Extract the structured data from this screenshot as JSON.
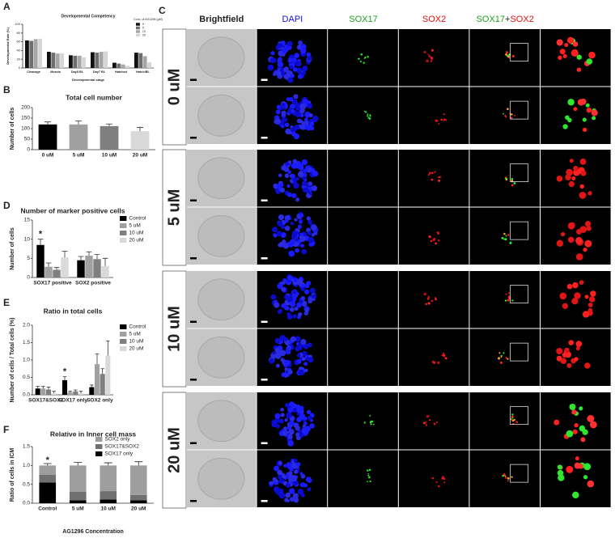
{
  "panel_labels": [
    "A",
    "B",
    "C",
    "D",
    "E",
    "F"
  ],
  "chart_data": [
    {
      "type": "bar",
      "title": "Developmental Competency",
      "x_label": "Developmental stage",
      "y_label": "Developmental Rate (%)",
      "categories": [
        "Cleavage",
        "Morula",
        "Day5 BL",
        "Day7 BL",
        "Hatched",
        "Hatch/BL"
      ],
      "legend_title": "Conc. of AG1296 (μM)",
      "series": [
        {
          "name": "0",
          "color": "#111111",
          "values": [
            63,
            37,
            29,
            36,
            12,
            35
          ]
        },
        {
          "name": "5",
          "color": "#6e6e6e",
          "values": [
            62,
            35,
            28,
            35,
            10,
            34
          ]
        },
        {
          "name": "10",
          "color": "#a6a6a6",
          "values": [
            66,
            33,
            28,
            37,
            8,
            27
          ]
        },
        {
          "name": "20",
          "color": "#d6d6d6",
          "values": [
            67,
            34,
            24,
            38,
            5,
            13
          ]
        }
      ],
      "ylim": [
        0,
        100
      ],
      "yticks": [
        0,
        20,
        40,
        60,
        80,
        100
      ]
    },
    {
      "type": "bar",
      "title": "Total cell number",
      "y_label": "Number of cells",
      "categories": [
        "0 uM",
        "5 uM",
        "10 uM",
        "20 uM"
      ],
      "values": [
        120,
        120,
        112,
        88
      ],
      "errors": [
        12,
        17,
        10,
        18
      ],
      "colors": [
        "#000000",
        "#a0a0a0",
        "#7f7f7f",
        "#d9d9d9"
      ],
      "ylim": [
        0,
        200
      ],
      "yticks": [
        0,
        50,
        100,
        150,
        200
      ]
    },
    {
      "type": "bar",
      "title": "Number of marker positive cells",
      "y_label": "Number of cells",
      "categories": [
        "SOX17 positive",
        "SOX2 positive"
      ],
      "annotation": "*",
      "series": [
        {
          "name": "Control",
          "color": "#000000",
          "values": [
            8.5,
            4.5
          ],
          "errors": [
            1.5,
            1
          ]
        },
        {
          "name": "5 uM",
          "color": "#a0a0a0",
          "values": [
            2.8,
            5.7
          ],
          "errors": [
            1,
            1
          ]
        },
        {
          "name": "10 uM",
          "color": "#7f7f7f",
          "values": [
            2,
            4.8
          ],
          "errors": [
            0.6,
            1.2
          ]
        },
        {
          "name": "20 uM",
          "color": "#d9d9d9",
          "values": [
            5.3,
            3
          ],
          "errors": [
            1.6,
            2
          ]
        }
      ],
      "ylim": [
        0,
        15
      ],
      "yticks": [
        0,
        5,
        10,
        15
      ]
    },
    {
      "type": "bar",
      "title": "Ratio in total cells",
      "y_label": "Number of cells / Total cells (%)",
      "categories": [
        "SOX17&SOX2",
        "SOX17 only",
        "SOX2 only"
      ],
      "annotation": "*",
      "series": [
        {
          "name": "Control",
          "color": "#000000",
          "values": [
            0.18,
            0.42,
            0.22
          ],
          "errors": [
            0.06,
            0.1,
            0.06
          ]
        },
        {
          "name": "5 uM",
          "color": "#a0a0a0",
          "values": [
            0.18,
            0.07,
            0.88
          ],
          "errors": [
            0.06,
            0.03,
            0.3
          ]
        },
        {
          "name": "10 uM",
          "color": "#7f7f7f",
          "values": [
            0.15,
            0.1,
            0.6
          ],
          "errors": [
            0.07,
            0.04,
            0.15
          ]
        },
        {
          "name": "20 uM",
          "color": "#d9d9d9",
          "values": [
            0.05,
            0.05,
            1.13
          ],
          "errors": [
            0.05,
            0.05,
            0.42
          ]
        }
      ],
      "ylim": [
        0,
        2
      ],
      "yticks": [
        {
          "value": 0,
          "label": "0.0"
        },
        {
          "value": 0.5,
          "label": "0.5"
        },
        {
          "value": 1,
          "label": "1.0"
        },
        {
          "value": 1.5,
          "label": "1.5"
        },
        {
          "value": 2,
          "label": "2.0"
        }
      ]
    },
    {
      "type": "stacked_bar",
      "title": "Relative in Inner cell mass",
      "x_label": "AG1296 Concentration",
      "y_label": "Ratio of cells in ICM",
      "categories": [
        "Control",
        "5 uM",
        "10 uM",
        "20 uM"
      ],
      "annotation": "*",
      "series": [
        {
          "name": "SOX17 only",
          "color": "#000000",
          "values": [
            0.55,
            0.08,
            0.1,
            0.08
          ],
          "errors": [
            0.08,
            0.03,
            0.05,
            0.04
          ]
        },
        {
          "name": "SOX17&SOX2",
          "color": "#707070",
          "values": [
            0.2,
            0.22,
            0.22,
            0.14
          ],
          "errors": [
            0.05,
            0.06,
            0.06,
            0.06
          ]
        },
        {
          "name": "SOX2 only",
          "color": "#9e9e9e",
          "values": [
            0.25,
            0.7,
            0.68,
            0.78
          ],
          "errors": [
            0.05,
            0.08,
            0.07,
            0.1
          ]
        }
      ],
      "ylim": [
        0,
        1.5
      ],
      "yticks": [
        {
          "value": 0,
          "label": "0.0"
        },
        {
          "value": 0.5,
          "label": "0.5"
        },
        {
          "value": 1,
          "label": "1.0"
        },
        {
          "value": 1.5,
          "label": "1.5"
        }
      ]
    }
  ],
  "microscopy": {
    "columns": [
      "Brightfield",
      "DAPI",
      "SOX17",
      "SOX2"
    ],
    "merge": [
      "SOX17",
      "+",
      "SOX2"
    ],
    "rows": [
      "0 uM",
      "5 uM",
      "10 uM",
      "20 uM"
    ]
  }
}
